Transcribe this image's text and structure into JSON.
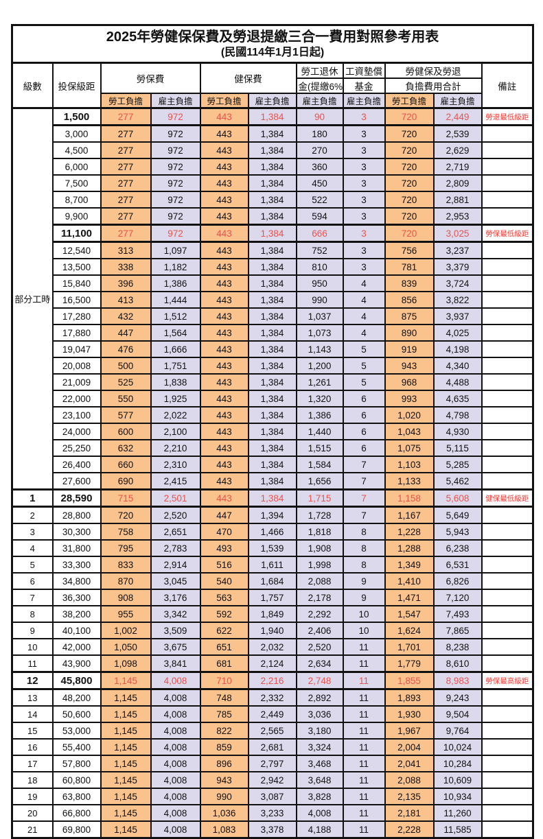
{
  "title": "2025年勞健保保費及勞退提繳三合一費用對照參考用表",
  "subtitle": "(民國114年1月1日起)",
  "header": {
    "level": "級數",
    "bracket": "投保級距",
    "labor_fee": "勞保費",
    "health_fee": "健保費",
    "pension_top": "勞工退休",
    "pension_bottom": "金(提繳6%)",
    "wage_fund_top": "工資墊償",
    "wage_fund_bottom": "基金",
    "total_top": "勞健保及勞退",
    "total_bottom": "負擔費用合計",
    "notes": "備註",
    "employee_share": "勞工負擔",
    "employer_share": "雇主負擔"
  },
  "part_time_label": "部分工時",
  "part_time_rowspan": 23,
  "colors": {
    "employee_bg": "#FAC28C",
    "employer_bg": "#DCD9ED",
    "highlight_text": "#E8534E",
    "note_text": "#F23B35"
  },
  "rows": [
    {
      "bracket": "1,500",
      "v": [
        "277",
        "972",
        "443",
        "1,384",
        "90",
        "3",
        "720",
        "2,449"
      ],
      "note": "勞退最低級距",
      "hl": true
    },
    {
      "bracket": "3,000",
      "v": [
        "277",
        "972",
        "443",
        "1,384",
        "180",
        "3",
        "720",
        "2,539"
      ]
    },
    {
      "bracket": "4,500",
      "v": [
        "277",
        "972",
        "443",
        "1,384",
        "270",
        "3",
        "720",
        "2,629"
      ]
    },
    {
      "bracket": "6,000",
      "v": [
        "277",
        "972",
        "443",
        "1,384",
        "360",
        "3",
        "720",
        "2,719"
      ]
    },
    {
      "bracket": "7,500",
      "v": [
        "277",
        "972",
        "443",
        "1,384",
        "450",
        "3",
        "720",
        "2,809"
      ]
    },
    {
      "bracket": "8,700",
      "v": [
        "277",
        "972",
        "443",
        "1,384",
        "522",
        "3",
        "720",
        "2,881"
      ]
    },
    {
      "bracket": "9,900",
      "v": [
        "277",
        "972",
        "443",
        "1,384",
        "594",
        "3",
        "720",
        "2,953"
      ]
    },
    {
      "bracket": "11,100",
      "v": [
        "277",
        "972",
        "443",
        "1,384",
        "666",
        "3",
        "720",
        "3,025"
      ],
      "note": "勞保最低級距",
      "hl": true
    },
    {
      "bracket": "12,540",
      "v": [
        "313",
        "1,097",
        "443",
        "1,384",
        "752",
        "3",
        "756",
        "3,237"
      ]
    },
    {
      "bracket": "13,500",
      "v": [
        "338",
        "1,182",
        "443",
        "1,384",
        "810",
        "3",
        "781",
        "3,379"
      ]
    },
    {
      "bracket": "15,840",
      "v": [
        "396",
        "1,386",
        "443",
        "1,384",
        "950",
        "4",
        "839",
        "3,724"
      ]
    },
    {
      "bracket": "16,500",
      "v": [
        "413",
        "1,444",
        "443",
        "1,384",
        "990",
        "4",
        "856",
        "3,822"
      ]
    },
    {
      "bracket": "17,280",
      "v": [
        "432",
        "1,512",
        "443",
        "1,384",
        "1,037",
        "4",
        "875",
        "3,937"
      ]
    },
    {
      "bracket": "17,880",
      "v": [
        "447",
        "1,564",
        "443",
        "1,384",
        "1,073",
        "4",
        "890",
        "4,025"
      ]
    },
    {
      "bracket": "19,047",
      "v": [
        "476",
        "1,666",
        "443",
        "1,384",
        "1,143",
        "5",
        "919",
        "4,198"
      ]
    },
    {
      "bracket": "20,008",
      "v": [
        "500",
        "1,751",
        "443",
        "1,384",
        "1,200",
        "5",
        "943",
        "4,340"
      ]
    },
    {
      "bracket": "21,009",
      "v": [
        "525",
        "1,838",
        "443",
        "1,384",
        "1,261",
        "5",
        "968",
        "4,488"
      ]
    },
    {
      "bracket": "22,000",
      "v": [
        "550",
        "1,925",
        "443",
        "1,384",
        "1,320",
        "6",
        "993",
        "4,635"
      ]
    },
    {
      "bracket": "23,100",
      "v": [
        "577",
        "2,022",
        "443",
        "1,384",
        "1,386",
        "6",
        "1,020",
        "4,798"
      ]
    },
    {
      "bracket": "24,000",
      "v": [
        "600",
        "2,100",
        "443",
        "1,384",
        "1,440",
        "6",
        "1,043",
        "4,930"
      ]
    },
    {
      "bracket": "25,250",
      "v": [
        "632",
        "2,210",
        "443",
        "1,384",
        "1,515",
        "6",
        "1,075",
        "5,115"
      ]
    },
    {
      "bracket": "26,400",
      "v": [
        "660",
        "2,310",
        "443",
        "1,384",
        "1,584",
        "7",
        "1,103",
        "5,285"
      ]
    },
    {
      "bracket": "27,600",
      "v": [
        "690",
        "2,415",
        "443",
        "1,384",
        "1,656",
        "7",
        "1,133",
        "5,462"
      ]
    },
    {
      "lv": "1",
      "bracket": "28,590",
      "v": [
        "715",
        "2,501",
        "443",
        "1,384",
        "1,715",
        "7",
        "1,158",
        "5,608"
      ],
      "note": "健保最低級距",
      "hl": true
    },
    {
      "lv": "2",
      "bracket": "28,800",
      "v": [
        "720",
        "2,520",
        "447",
        "1,394",
        "1,728",
        "7",
        "1,167",
        "5,649"
      ]
    },
    {
      "lv": "3",
      "bracket": "30,300",
      "v": [
        "758",
        "2,651",
        "470",
        "1,466",
        "1,818",
        "8",
        "1,228",
        "5,943"
      ]
    },
    {
      "lv": "4",
      "bracket": "31,800",
      "v": [
        "795",
        "2,783",
        "493",
        "1,539",
        "1,908",
        "8",
        "1,288",
        "6,238"
      ]
    },
    {
      "lv": "5",
      "bracket": "33,300",
      "v": [
        "833",
        "2,914",
        "516",
        "1,611",
        "1,998",
        "8",
        "1,349",
        "6,531"
      ]
    },
    {
      "lv": "6",
      "bracket": "34,800",
      "v": [
        "870",
        "3,045",
        "540",
        "1,684",
        "2,088",
        "9",
        "1,410",
        "6,826"
      ]
    },
    {
      "lv": "7",
      "bracket": "36,300",
      "v": [
        "908",
        "3,176",
        "563",
        "1,757",
        "2,178",
        "9",
        "1,471",
        "7,120"
      ]
    },
    {
      "lv": "8",
      "bracket": "38,200",
      "v": [
        "955",
        "3,342",
        "592",
        "1,849",
        "2,292",
        "10",
        "1,547",
        "7,493"
      ]
    },
    {
      "lv": "9",
      "bracket": "40,100",
      "v": [
        "1,002",
        "3,509",
        "622",
        "1,940",
        "2,406",
        "10",
        "1,624",
        "7,865"
      ]
    },
    {
      "lv": "10",
      "bracket": "42,000",
      "v": [
        "1,050",
        "3,675",
        "651",
        "2,032",
        "2,520",
        "11",
        "1,701",
        "8,238"
      ]
    },
    {
      "lv": "11",
      "bracket": "43,900",
      "v": [
        "1,098",
        "3,841",
        "681",
        "2,124",
        "2,634",
        "11",
        "1,779",
        "8,610"
      ]
    },
    {
      "lv": "12",
      "bracket": "45,800",
      "v": [
        "1,145",
        "4,008",
        "710",
        "2,216",
        "2,748",
        "11",
        "1,855",
        "8,983"
      ],
      "note": "勞保最高級距",
      "hl": true
    },
    {
      "lv": "13",
      "bracket": "48,200",
      "v": [
        "1,145",
        "4,008",
        "748",
        "2,332",
        "2,892",
        "11",
        "1,893",
        "9,243"
      ]
    },
    {
      "lv": "14",
      "bracket": "50,600",
      "v": [
        "1,145",
        "4,008",
        "785",
        "2,449",
        "3,036",
        "11",
        "1,930",
        "9,504"
      ]
    },
    {
      "lv": "15",
      "bracket": "53,000",
      "v": [
        "1,145",
        "4,008",
        "822",
        "2,565",
        "3,180",
        "11",
        "1,967",
        "9,764"
      ]
    },
    {
      "lv": "16",
      "bracket": "55,400",
      "v": [
        "1,145",
        "4,008",
        "859",
        "2,681",
        "3,324",
        "11",
        "2,004",
        "10,024"
      ]
    },
    {
      "lv": "17",
      "bracket": "57,800",
      "v": [
        "1,145",
        "4,008",
        "896",
        "2,797",
        "3,468",
        "11",
        "2,041",
        "10,284"
      ]
    },
    {
      "lv": "18",
      "bracket": "60,800",
      "v": [
        "1,145",
        "4,008",
        "943",
        "2,942",
        "3,648",
        "11",
        "2,088",
        "10,609"
      ]
    },
    {
      "lv": "19",
      "bracket": "63,800",
      "v": [
        "1,145",
        "4,008",
        "990",
        "3,087",
        "3,828",
        "11",
        "2,135",
        "10,934"
      ]
    },
    {
      "lv": "20",
      "bracket": "66,800",
      "v": [
        "1,145",
        "4,008",
        "1,036",
        "3,233",
        "4,008",
        "11",
        "2,181",
        "11,260"
      ]
    },
    {
      "lv": "21",
      "bracket": "69,800",
      "v": [
        "1,145",
        "4,008",
        "1,083",
        "3,378",
        "4,188",
        "11",
        "2,228",
        "11,585"
      ]
    }
  ]
}
